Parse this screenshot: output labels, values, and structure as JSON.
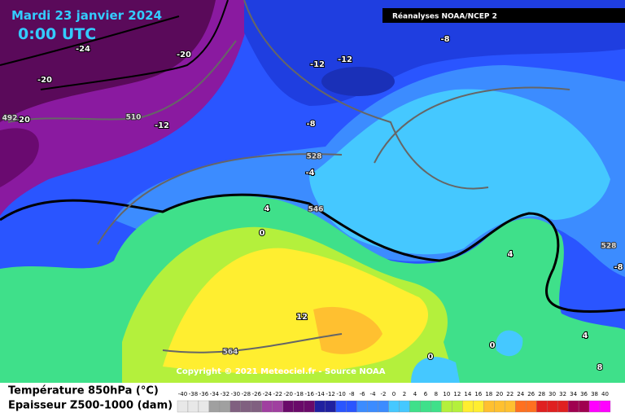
{
  "header": {
    "date": "Mardi 23 janvier 2024",
    "time": "0:00 UTC",
    "source": "Réanalyses NOAA/NCEP 2"
  },
  "copyright": "Copyright © 2021 Meteociel.fr - Source NOAA",
  "legend": {
    "temperature": "Température 850hPa (°C)",
    "thickness": "Epaisseur Z500-1000 (dam)",
    "scale": [
      -40,
      -38,
      -36,
      -34,
      -32,
      -30,
      -28,
      -26,
      -24,
      -22,
      -20,
      -18,
      -16,
      -14,
      -12,
      -10,
      -8,
      -6,
      -4,
      -2,
      0,
      2,
      4,
      6,
      8,
      10,
      12,
      14,
      16,
      18,
      20,
      22,
      24,
      26,
      28,
      30,
      32,
      34,
      36,
      38,
      40
    ]
  },
  "map": {
    "temperature_labels": [
      -24,
      -20,
      -20,
      -20,
      -12,
      -12,
      -12,
      -8,
      -8,
      -4,
      4,
      0,
      4,
      12,
      0,
      0,
      4,
      8,
      -8
    ],
    "thickness_labels": [
      492,
      510,
      528,
      546,
      528,
      564
    ]
  }
}
